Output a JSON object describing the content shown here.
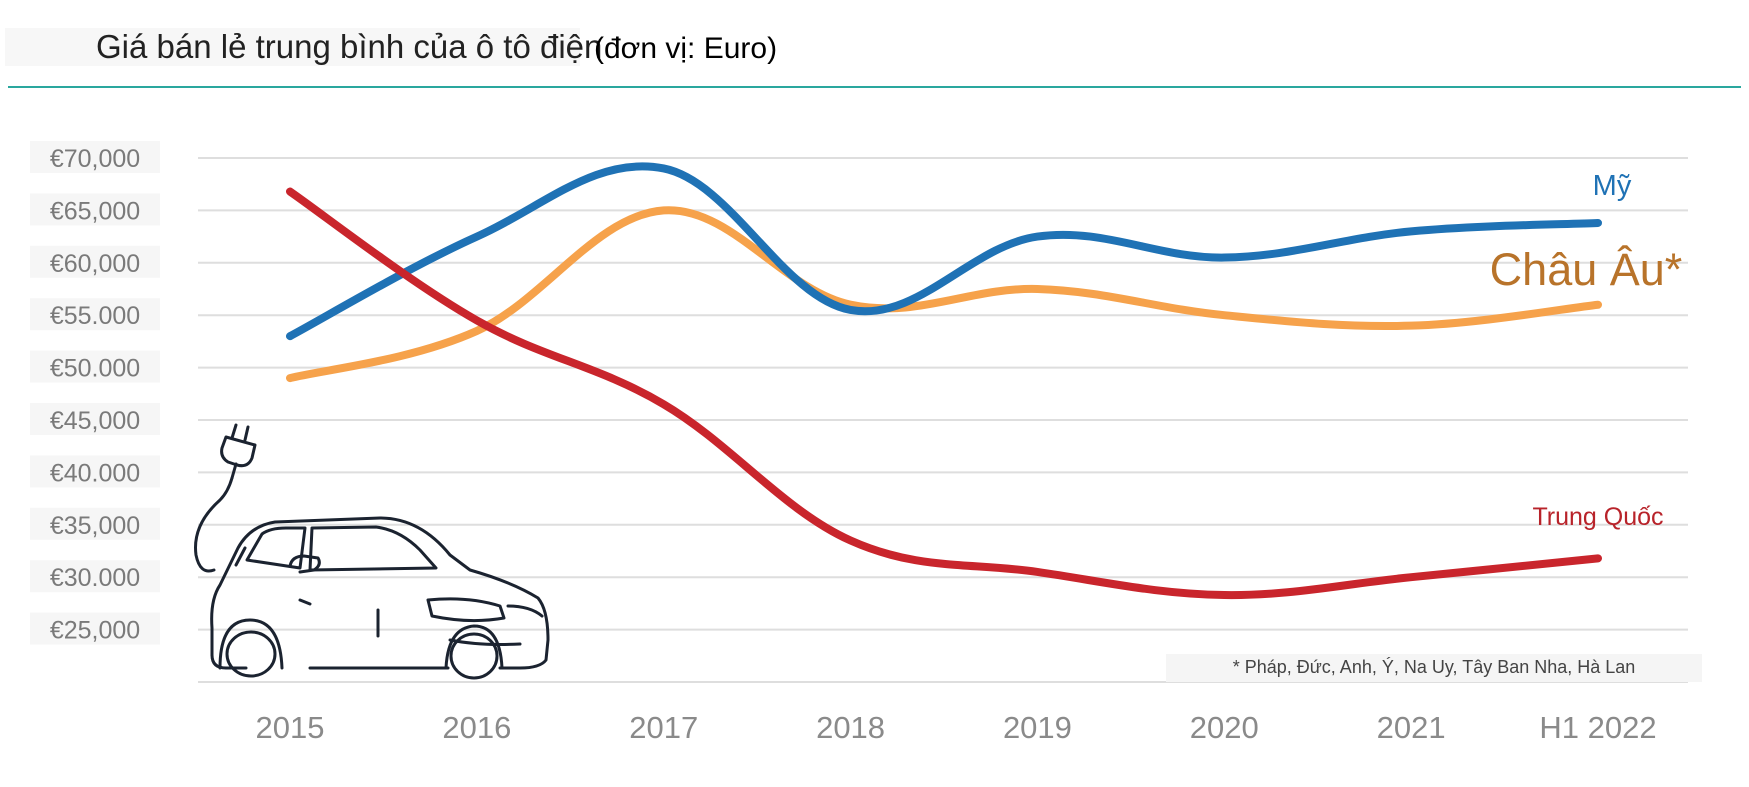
{
  "chart_data": {
    "type": "line",
    "title": "Giá bán lẻ trung bình của ô tô điện",
    "unit_label": "(đơn vị: Euro)",
    "categories": [
      "2015",
      "2016",
      "2017",
      "2018",
      "2019",
      "2020",
      "2021",
      "H1 2022"
    ],
    "y_tick_labels": [
      "€70,000",
      "€65,000",
      "€60,000",
      "€55.000",
      "€50.000",
      "€45,000",
      "€40.000",
      "€35,000",
      "€30.000",
      "€25,000"
    ],
    "y_tick_values": [
      70000,
      65000,
      60000,
      55000,
      50000,
      45000,
      40000,
      35000,
      30000,
      25000
    ],
    "ylim": [
      20000,
      70000
    ],
    "grid": true,
    "series": [
      {
        "name": "Mỹ",
        "color": "#1f72b5",
        "values": [
          53000,
          62500,
          69000,
          55500,
          62500,
          60500,
          63000,
          63800
        ]
      },
      {
        "name": "Châu Âu*",
        "color": "#f6a24b",
        "label_color": "#b8732a",
        "values": [
          49000,
          53500,
          65000,
          56000,
          57500,
          55000,
          54000,
          56000
        ]
      },
      {
        "name": "Trung Quốc",
        "color": "#c9252c",
        "label_color": "#b8232a",
        "values": [
          66800,
          54500,
          46500,
          33500,
          30500,
          28300,
          30000,
          31800
        ]
      }
    ],
    "footnote": "* Pháp, Đức, Anh, Ý, Na Uy, Tây Ban Nha, Hà Lan",
    "illustration": "electric-car-icon"
  }
}
